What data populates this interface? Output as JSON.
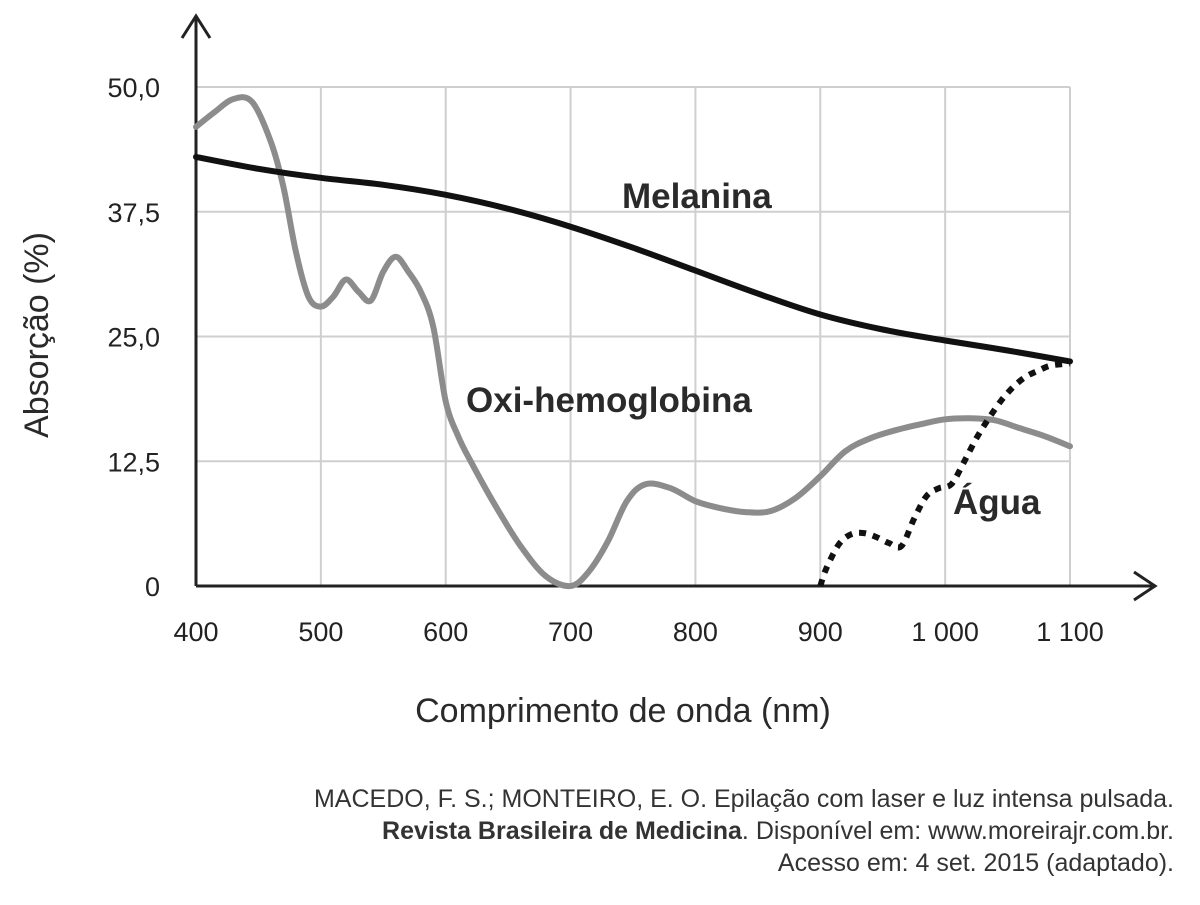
{
  "chart_data": {
    "type": "line",
    "xlabel": "Comprimento de onda (nm)",
    "ylabel": "Absorção (%)",
    "xlim": [
      400,
      1100
    ],
    "ylim": [
      0,
      50
    ],
    "x_ticks": [
      400,
      500,
      600,
      700,
      800,
      900,
      1000,
      1100
    ],
    "x_tick_labels": [
      "400",
      "500",
      "600",
      "700",
      "800",
      "900",
      "1 000",
      "1 100"
    ],
    "y_ticks": [
      0,
      12.5,
      25,
      37.5,
      50
    ],
    "y_tick_labels": [
      "0",
      "12,5",
      "25,0",
      "37,5",
      "50,0"
    ],
    "grid": true,
    "colors": {
      "melanina": "#111111",
      "oxi_hemoglobina": "#8c8c8c",
      "agua": "#111111",
      "grid": "#cfcfcf",
      "axes": "#222222"
    },
    "series": [
      {
        "name": "Melanina",
        "style": "solid",
        "x": [
          400,
          450,
          500,
          550,
          600,
          650,
          700,
          750,
          800,
          850,
          900,
          950,
          1000,
          1050,
          1100
        ],
        "y": [
          43.0,
          41.8,
          40.9,
          40.2,
          39.2,
          37.8,
          36.0,
          33.9,
          31.6,
          29.3,
          27.2,
          25.7,
          24.6,
          23.6,
          22.5
        ]
      },
      {
        "name": "Oxi-hemoglobina",
        "style": "solid",
        "x": [
          400,
          415,
          430,
          445,
          460,
          470,
          480,
          490,
          500,
          510,
          520,
          530,
          540,
          550,
          560,
          570,
          580,
          590,
          600,
          610,
          620,
          640,
          660,
          680,
          700,
          715,
          730,
          745,
          760,
          780,
          800,
          820,
          840,
          860,
          880,
          900,
          920,
          940,
          960,
          980,
          1000,
          1020,
          1040,
          1060,
          1080,
          1100
        ],
        "y": [
          46.0,
          47.5,
          48.8,
          48.5,
          44.5,
          40.0,
          33.5,
          29.0,
          28.0,
          29.0,
          30.7,
          29.5,
          28.6,
          31.5,
          33.0,
          31.5,
          29.5,
          26.0,
          18.5,
          15.0,
          12.5,
          8.0,
          4.0,
          1.0,
          0.0,
          1.5,
          4.5,
          8.5,
          10.2,
          9.8,
          8.5,
          7.8,
          7.4,
          7.5,
          8.8,
          11.0,
          13.5,
          14.8,
          15.6,
          16.2,
          16.7,
          16.8,
          16.6,
          15.8,
          15.0,
          14.0
        ]
      },
      {
        "name": "Água",
        "style": "dotted",
        "x": [
          900,
          905,
          915,
          925,
          935,
          945,
          955,
          965,
          975,
          985,
          995,
          1005,
          1015,
          1025,
          1035,
          1045,
          1055,
          1065,
          1075,
          1085,
          1100
        ],
        "y": [
          0.0,
          1.8,
          4.2,
          5.2,
          5.3,
          4.9,
          4.3,
          4.0,
          6.7,
          9.0,
          9.8,
          10.2,
          12.4,
          14.8,
          16.8,
          18.6,
          20.0,
          21.0,
          21.6,
          22.1,
          22.3
        ]
      }
    ],
    "annotations": [
      "Melanina",
      "Oxi-hemoglobina",
      "Água"
    ]
  },
  "source": {
    "line1": "MACEDO, F. S.; MONTEIRO, E. O. Epilação com laser e luz intensa pulsada.",
    "line2_bold": "Revista Brasileira de Medicina",
    "line2_rest": ". Disponível em: www.moreirajr.com.br.",
    "line3": "Acesso em: 4 set. 2015 (adaptado)."
  }
}
